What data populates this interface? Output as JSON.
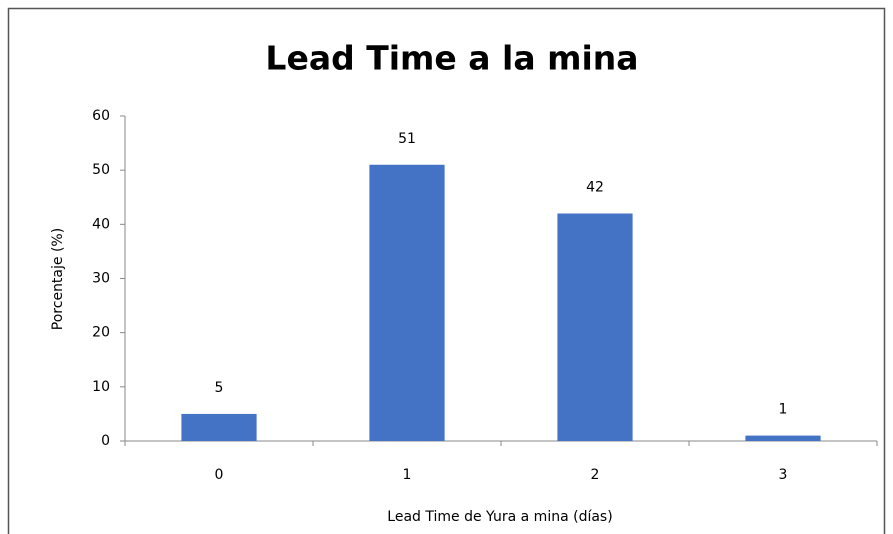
{
  "chart_data": {
    "type": "bar",
    "title": "Lead Time a la mina",
    "x_label": "Lead Time de Yura a mina (días)",
    "y_label": "Porcentaje (%)",
    "categories": [
      "0",
      "1",
      "2",
      "3"
    ],
    "values": [
      5,
      51,
      42,
      1
    ],
    "color": "#4472c4",
    "ylim": [
      0,
      60
    ],
    "yticks": [
      0,
      10,
      20,
      30,
      40,
      50,
      60
    ],
    "grid": false
  }
}
